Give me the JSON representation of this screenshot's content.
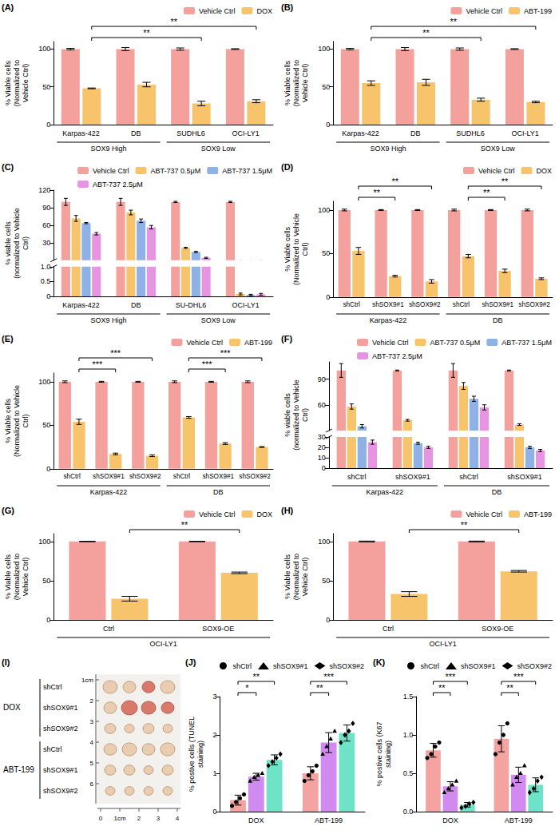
{
  "chart_data": [
    {
      "panel": "(A)",
      "type": "bar",
      "legend": "top-right",
      "grid": false,
      "categories": [
        "Karpas-422",
        "DB",
        "SUDHL6",
        "OCI-LY1"
      ],
      "groups": [
        {
          "label": "SOX9 High",
          "from": 0,
          "to": 1
        },
        {
          "label": "SOX9 Low",
          "from": 2,
          "to": 3
        }
      ],
      "y_label": "% Viable cells (Normalized to Vehicle Ctrl)",
      "ylim": [
        0,
        110
      ],
      "yticks": [
        0,
        50,
        100
      ],
      "series": [
        {
          "name": "Vehicle Ctrl",
          "color": "#F4A09C",
          "values": [
            100,
            100,
            100,
            100
          ],
          "errors": [
            1,
            2,
            1.5,
            0.5
          ]
        },
        {
          "name": "DOX",
          "color": "#F7C46C",
          "values": [
            48,
            53,
            28,
            31
          ],
          "errors": [
            0.5,
            3,
            3,
            2
          ]
        }
      ],
      "annotations": [
        {
          "from": 0,
          "to": 2,
          "text": "**"
        },
        {
          "from": 0,
          "to": 3,
          "text": "**"
        }
      ]
    },
    {
      "panel": "(B)",
      "type": "bar",
      "legend": "top-right",
      "grid": false,
      "categories": [
        "Karpas-422",
        "DB",
        "SUDHL6",
        "OCI-LY1"
      ],
      "groups": [
        {
          "label": "SOX9 High",
          "from": 0,
          "to": 1
        },
        {
          "label": "SOX9 Low",
          "from": 2,
          "to": 3
        }
      ],
      "y_label": "% Viable cells (Normalized to Vehicle Ctrl)",
      "ylim": [
        0,
        110
      ],
      "yticks": [
        0,
        50,
        100
      ],
      "series": [
        {
          "name": "Vehicle Ctrl",
          "color": "#F4A09C",
          "values": [
            100,
            100,
            100,
            100
          ],
          "errors": [
            1,
            2,
            1.5,
            0.5
          ]
        },
        {
          "name": "ABT-199",
          "color": "#F7C46C",
          "values": [
            55,
            56,
            33,
            30
          ],
          "errors": [
            3,
            4,
            2,
            1
          ]
        }
      ],
      "annotations": [
        {
          "from": 0,
          "to": 2,
          "text": "**"
        },
        {
          "from": 0,
          "to": 3,
          "text": "**"
        }
      ]
    },
    {
      "panel": "(C)",
      "type": "bar",
      "legend": "top-right",
      "grid": false,
      "categories": [
        "Karpas-422",
        "DB",
        "SU-DHL6",
        "OCI-LY1"
      ],
      "groups": [
        {
          "label": "SOX9 High",
          "from": 0,
          "to": 1
        },
        {
          "label": "SOX9 Low",
          "from": 2,
          "to": 3
        }
      ],
      "y_label": "% viable cells (normalized to Vehicle Ctrl)",
      "ylim": [
        0,
        120
      ],
      "ybreak": 1,
      "yticks": [
        0,
        0.5,
        {
          "value": 1,
          "label": "1.0"
        },
        30,
        60,
        90,
        120
      ],
      "series": [
        {
          "name": "Vehicle Ctrl",
          "color": "#F4A09C",
          "values": [
            100,
            100,
            100,
            100
          ],
          "errors": [
            6,
            6,
            1,
            1
          ]
        },
        {
          "name": "ABT-737 0.5μM",
          "color": "#F7C46C",
          "values": [
            72,
            82,
            22,
            0.08
          ],
          "errors": [
            5,
            4,
            1,
            0.03
          ]
        },
        {
          "name": "ABT-737 1.5μM",
          "color": "#8EB1E6",
          "values": [
            64,
            68,
            15,
            0.05
          ],
          "errors": [
            1,
            3,
            1,
            0.02
          ]
        },
        {
          "name": "ABT-737 2.5μM",
          "color": "#E795E3",
          "values": [
            46,
            57,
            5,
            0.07
          ],
          "errors": [
            2,
            3,
            1,
            0.03
          ]
        }
      ]
    },
    {
      "panel": "(D)",
      "type": "bar",
      "legend": "top-right",
      "grid": false,
      "categories": [
        "shCtrl",
        "shSOX9#1",
        "shSOX9#2",
        "shCtrl",
        "shSOX9#1",
        "shSOX9#2"
      ],
      "groups": [
        {
          "label": "Karpas-422",
          "from": 0,
          "to": 2
        },
        {
          "label": "DB",
          "from": 3,
          "to": 5
        }
      ],
      "y_label": "% Viable cells (Normalized to Vehicle Ctrl)",
      "ylim": [
        0,
        110
      ],
      "yticks": [
        0,
        50,
        100
      ],
      "series": [
        {
          "name": "Vehicle Ctrl",
          "color": "#F4A09C",
          "values": [
            100,
            100,
            100,
            100,
            100,
            100
          ],
          "errors": [
            1,
            0.5,
            0.5,
            1,
            0.5,
            1
          ]
        },
        {
          "name": "DOX",
          "color": "#F7C46C",
          "values": [
            53,
            24,
            18,
            47,
            30,
            21
          ],
          "errors": [
            4,
            1,
            2,
            2,
            2,
            1
          ]
        }
      ],
      "annotations": [
        {
          "from": 0,
          "to": 1,
          "text": "**"
        },
        {
          "from": 0,
          "to": 2,
          "text": "**"
        },
        {
          "from": 3,
          "to": 4,
          "text": "**"
        },
        {
          "from": 3,
          "to": 5,
          "text": "**"
        }
      ]
    },
    {
      "panel": "(E)",
      "type": "bar",
      "legend": "top-right",
      "grid": false,
      "categories": [
        "shCtrl",
        "shSOX9#1",
        "shSOX9#2",
        "shCtrl",
        "shSOX9#1",
        "shSOX9#2"
      ],
      "groups": [
        {
          "label": "Karpas-422",
          "from": 0,
          "to": 2
        },
        {
          "label": "DB",
          "from": 3,
          "to": 5
        }
      ],
      "y_label": "% Viable cells (Normalized to Vehicle Ctrl)",
      "ylim": [
        0,
        110
      ],
      "yticks": [
        0,
        50,
        100
      ],
      "series": [
        {
          "name": "Vehicle Ctrl",
          "color": "#F4A09C",
          "values": [
            100,
            100,
            100,
            100,
            100,
            100
          ],
          "errors": [
            1,
            0.5,
            0.5,
            1,
            0.5,
            1
          ]
        },
        {
          "name": "ABT-199",
          "color": "#F7C46C",
          "values": [
            54,
            17,
            15,
            59,
            29,
            25
          ],
          "errors": [
            3,
            1,
            1,
            1,
            1,
            0.5
          ]
        }
      ],
      "annotations": [
        {
          "from": 0,
          "to": 1,
          "text": "***"
        },
        {
          "from": 0,
          "to": 2,
          "text": "***"
        },
        {
          "from": 3,
          "to": 4,
          "text": "***"
        },
        {
          "from": 3,
          "to": 5,
          "text": "***"
        }
      ]
    },
    {
      "panel": "(F)",
      "type": "bar",
      "legend": "top-right",
      "grid": false,
      "categories": [
        "shCtrl",
        "shSOX9#1",
        "shCtrl",
        "shSOX9#1"
      ],
      "groups": [
        {
          "label": "Karpas-422",
          "from": 0,
          "to": 1
        },
        {
          "label": "DB",
          "from": 2,
          "to": 3
        }
      ],
      "y_label": "% viable cells (normalized to Vehicle Ctrl)",
      "ylim": [
        0,
        110
      ],
      "ybreak": 30,
      "yticks": [
        0,
        10,
        20,
        30,
        60,
        90
      ],
      "series": [
        {
          "name": "Vehicle Ctrl",
          "color": "#F4A09C",
          "values": [
            100,
            100,
            100,
            100
          ],
          "errors": [
            8,
            0.5,
            8,
            0.5
          ]
        },
        {
          "name": "ABT-737 0.5μM",
          "color": "#F7C46C",
          "values": [
            58,
            42,
            82,
            37
          ],
          "errors": [
            3,
            1,
            4,
            1
          ]
        },
        {
          "name": "ABT-737 1.5μM",
          "color": "#8EB1E6",
          "values": [
            35,
            24,
            67,
            20
          ],
          "errors": [
            2,
            1,
            3,
            1
          ]
        },
        {
          "name": "ABT-737 2.5μM",
          "color": "#E795E3",
          "values": [
            25,
            20,
            57,
            17
          ],
          "errors": [
            2,
            1,
            3,
            1
          ]
        }
      ]
    },
    {
      "panel": "(G)",
      "type": "bar",
      "legend": "top-right",
      "grid": false,
      "categories": [
        "Ctrl",
        "SOX9-OE"
      ],
      "groups": [
        {
          "label": "OCI-LY1",
          "from": 0,
          "to": 1
        }
      ],
      "y_label": "% Viable cells (Normalized to Vehicle Ctrl)",
      "ylim": [
        0,
        110
      ],
      "yticks": [
        0,
        50,
        100
      ],
      "series": [
        {
          "name": "Vehicle Ctrl",
          "color": "#F4A09C",
          "values": [
            100,
            100
          ],
          "errors": [
            0.3,
            0.3
          ]
        },
        {
          "name": "DOX",
          "color": "#F7C46C",
          "values": [
            27,
            60
          ],
          "errors": [
            3,
            1
          ]
        }
      ],
      "annotations": [
        {
          "from": 0,
          "to": 1,
          "text": "**"
        }
      ]
    },
    {
      "panel": "(H)",
      "type": "bar",
      "legend": "top-right",
      "grid": false,
      "categories": [
        "Ctrl",
        "SOX9-OE"
      ],
      "groups": [
        {
          "label": "OCI-LY1",
          "from": 0,
          "to": 1
        }
      ],
      "y_label": "% Viable cells (Normalized to Vehicle Ctrl)",
      "ylim": [
        0,
        110
      ],
      "yticks": [
        0,
        50,
        100
      ],
      "series": [
        {
          "name": "Vehicle Ctrl",
          "color": "#F4A09C",
          "values": [
            100,
            100
          ],
          "errors": [
            0.5,
            0.5
          ]
        },
        {
          "name": "ABT-199",
          "color": "#F7C46C",
          "values": [
            33,
            62
          ],
          "errors": [
            3,
            1
          ]
        }
      ],
      "annotations": [
        {
          "from": 0,
          "to": 1,
          "text": "**"
        }
      ]
    },
    {
      "panel": "(I)",
      "type": "photo",
      "groups": [
        {
          "label": "DOX",
          "rows": [
            "shCtrl",
            "shSOX9#1",
            "shSOX9#2"
          ]
        },
        {
          "label": "ABT-199",
          "rows": [
            "shCtrl",
            "shSOX9#1",
            "shSOX9#2"
          ]
        }
      ],
      "ruler_y": [
        "1cm",
        "2",
        "3",
        "4",
        "5",
        "6"
      ],
      "ruler_x": [
        "0",
        "1cm",
        "2",
        "3",
        "4"
      ]
    },
    {
      "panel": "(J)",
      "type": "bar",
      "legend": "top-right",
      "grid": false,
      "categories": [
        "DOX",
        "ABT-199"
      ],
      "y_label": "% postive cells (TUNEL staining)",
      "ylim": [
        0,
        3
      ],
      "yticks": [
        0,
        1,
        2,
        3
      ],
      "series": [
        {
          "name": "shCtrl",
          "color": "#F4A3A0",
          "marker": "circle",
          "values": [
            0.3,
            1.0
          ],
          "errors": [
            0.13,
            0.17
          ],
          "points": [
            [
              0.15,
              0.25,
              0.35,
              0.45
            ],
            [
              0.8,
              0.95,
              1.05,
              1.2
            ]
          ]
        },
        {
          "name": "shSOX9#1",
          "color": "#D08AF0",
          "marker": "triangle",
          "values": [
            0.91,
            1.8
          ],
          "errors": [
            0.09,
            0.26
          ],
          "points": [
            [
              0.8,
              0.9,
              0.95,
              1.0
            ],
            [
              1.5,
              1.7,
              1.9,
              2.1
            ]
          ]
        },
        {
          "name": "shSOX9#2",
          "color": "#6EE3C8",
          "marker": "diamond",
          "values": [
            1.35,
            2.05
          ],
          "errors": [
            0.13,
            0.21
          ],
          "points": [
            [
              1.2,
              1.3,
              1.4,
              1.5
            ],
            [
              1.8,
              2.0,
              2.1,
              2.3
            ]
          ]
        }
      ],
      "annotations": [
        {
          "category": "DOX",
          "from": "shCtrl",
          "to": "shSOX9#1",
          "text": "*"
        },
        {
          "category": "DOX",
          "from": "shCtrl",
          "to": "shSOX9#2",
          "text": "**"
        },
        {
          "category": "ABT-199",
          "from": "shCtrl",
          "to": "shSOX9#1",
          "text": "**"
        },
        {
          "category": "ABT-199",
          "from": "shCtrl",
          "to": "shSOX9#2",
          "text": "***"
        }
      ]
    },
    {
      "panel": "(K)",
      "type": "bar",
      "legend": "top-right",
      "grid": false,
      "categories": [
        "DOX",
        "ABT-199"
      ],
      "y_label": "% postive cells (K67 staining)",
      "ylim": [
        0,
        1.5
      ],
      "yticks": [
        {
          "value": 0,
          "label": "0.0"
        },
        0.5,
        {
          "value": 1,
          "label": "1.0"
        },
        1.5
      ],
      "series": [
        {
          "name": "shCtrl",
          "color": "#F4A3A0",
          "marker": "circle",
          "values": [
            0.8,
            0.95
          ],
          "errors": [
            0.09,
            0.17
          ],
          "points": [
            [
              0.7,
              0.75,
              0.85,
              0.9
            ],
            [
              0.75,
              0.9,
              1.0,
              1.15
            ]
          ]
        },
        {
          "name": "shSOX9#1",
          "color": "#D08AF0",
          "marker": "triangle",
          "values": [
            0.33,
            0.48
          ],
          "errors": [
            0.06,
            0.1
          ],
          "points": [
            [
              0.25,
              0.3,
              0.35,
              0.4
            ],
            [
              0.35,
              0.45,
              0.5,
              0.6
            ]
          ]
        },
        {
          "name": "shSOX9#2",
          "color": "#6EE3C8",
          "marker": "diamond",
          "values": [
            0.09,
            0.35
          ],
          "errors": [
            0.03,
            0.09
          ],
          "points": [
            [
              0.05,
              0.07,
              0.1,
              0.12
            ],
            [
              0.25,
              0.3,
              0.4,
              0.45
            ]
          ]
        }
      ],
      "annotations": [
        {
          "category": "DOX",
          "from": "shCtrl",
          "to": "shSOX9#1",
          "text": "**"
        },
        {
          "category": "DOX",
          "from": "shCtrl",
          "to": "shSOX9#2",
          "text": "***"
        },
        {
          "category": "ABT-199",
          "from": "shCtrl",
          "to": "shSOX9#1",
          "text": "**"
        },
        {
          "category": "ABT-199",
          "from": "shCtrl",
          "to": "shSOX9#2",
          "text": "***"
        }
      ]
    }
  ]
}
